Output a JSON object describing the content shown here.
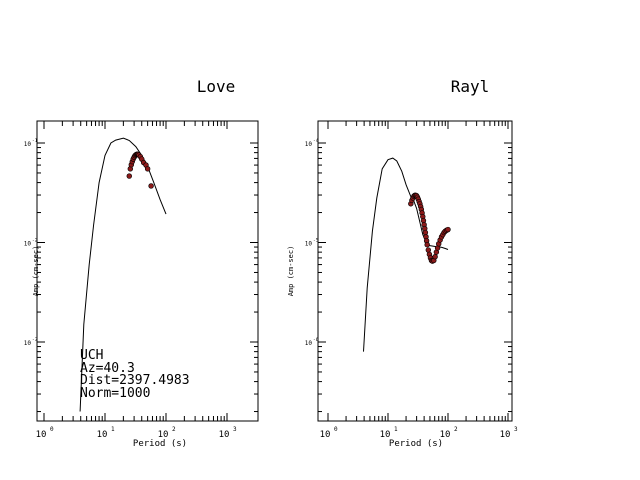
{
  "panels": [
    {
      "title": "Love",
      "xlabel": "Period (s)",
      "ylabel": "Amp (cm-sec)",
      "x_ticks": [
        {
          "value": 1,
          "base": "10",
          "exp": "0"
        },
        {
          "value": 10,
          "base": "10",
          "exp": "1"
        },
        {
          "value": 100,
          "base": "10",
          "exp": "2"
        },
        {
          "value": 1000,
          "base": "10",
          "exp": "3"
        }
      ],
      "y_ticks": [
        {
          "value": 0.1,
          "base": "10",
          "exp": "-1"
        },
        {
          "value": 0.01,
          "base": "10",
          "exp": "-2"
        },
        {
          "value": 0.001,
          "base": "10",
          "exp": "-3"
        }
      ],
      "info": [
        "UCH",
        "Az=40.3",
        "Dist=2397.4983",
        "Norm=1000"
      ]
    },
    {
      "title": "Rayl",
      "xlabel": "Period (s)",
      "ylabel": "Amp (cm-sec)",
      "x_ticks": [
        {
          "value": 1,
          "base": "10",
          "exp": "0"
        },
        {
          "value": 10,
          "base": "10",
          "exp": "1"
        },
        {
          "value": 100,
          "base": "10",
          "exp": "2"
        },
        {
          "value": 1000,
          "base": "10",
          "exp": "3"
        }
      ],
      "y_ticks": [
        {
          "value": 0.0001,
          "base": "10",
          "exp": "-4"
        },
        {
          "value": 1e-05,
          "base": "10",
          "exp": "-5"
        },
        {
          "value": 1e-06,
          "base": "10",
          "exp": "-6"
        }
      ],
      "info": []
    }
  ],
  "chart_data": [
    {
      "type": "line",
      "title": "Love",
      "xlabel": "Period (s)",
      "ylabel": "Amp (cm-sec)",
      "x_scale": "log",
      "y_scale": "log",
      "xlim": [
        1,
        1000
      ],
      "ylim": [
        0.0002,
        0.2
      ],
      "grid": false,
      "series": [
        {
          "kind": "line",
          "color": "#000000",
          "x": [
            3.9,
            4.5,
            5.5,
            6.5,
            8,
            10,
            12.5,
            15,
            20,
            25,
            32,
            40,
            50,
            63,
            80,
            100
          ],
          "y": [
            0.0002,
            0.0015,
            0.006,
            0.015,
            0.04,
            0.075,
            0.1,
            0.107,
            0.112,
            0.106,
            0.092,
            0.075,
            0.058,
            0.04,
            0.027,
            0.0193
          ]
        },
        {
          "kind": "scatter",
          "color": "#8b1a1a",
          "x": [
            25,
            26,
            27,
            28,
            29,
            30,
            31,
            32,
            33,
            34,
            35,
            36,
            38,
            40,
            43,
            47,
            50,
            57
          ],
          "y": [
            0.0465,
            0.055,
            0.0605,
            0.065,
            0.069,
            0.072,
            0.0745,
            0.076,
            0.077,
            0.0772,
            0.0768,
            0.0755,
            0.073,
            0.069,
            0.0635,
            0.06,
            0.055,
            0.037
          ]
        }
      ]
    },
    {
      "type": "line",
      "title": "Rayl",
      "xlabel": "Period (s)",
      "ylabel": "Amp (cm-sec)",
      "x_scale": "log",
      "y_scale": "log",
      "xlim": [
        1,
        1000
      ],
      "ylim": [
        2e-07,
        0.0002
      ],
      "grid": false,
      "series": [
        {
          "kind": "line",
          "color": "#000000",
          "x": [
            3.9,
            4.5,
            5.5,
            6.5,
            8,
            10,
            12,
            14,
            17,
            20,
            24,
            27,
            30,
            34,
            38,
            42,
            46,
            50,
            56,
            63,
            70,
            80,
            90,
            100
          ],
          "y": [
            8e-07,
            3.5e-06,
            1.3e-05,
            2.8e-05,
            5.5e-05,
            6.8e-05,
            7.05e-05,
            6.6e-05,
            5.2e-05,
            3.8e-05,
            2.9e-05,
            2.6e-05,
            2.2e-05,
            1.6e-05,
            1.2e-05,
            1.05e-05,
            9.6e-06,
            9.3e-06,
            9.2e-06,
            9.1e-06,
            9.1e-06,
            8.9e-06,
            8.7e-06,
            8.5e-06
          ]
        },
        {
          "kind": "scatter",
          "color": "#8b1a1a",
          "x": [
            24,
            25,
            26,
            27,
            28,
            29,
            30,
            31,
            32,
            33,
            34,
            35,
            36,
            37,
            38,
            39,
            40,
            41,
            42,
            43,
            44,
            45,
            47,
            49,
            51,
            53,
            55,
            58,
            61,
            64,
            67,
            70,
            74,
            78,
            82,
            86,
            90,
            95,
            100
          ],
          "y": [
            2.45e-05,
            2.65e-05,
            2.8e-05,
            2.92e-05,
            2.98e-05,
            2.98e-05,
            2.95e-05,
            2.85e-05,
            2.72e-05,
            2.58e-05,
            2.45e-05,
            2.3e-05,
            2.15e-05,
            1.98e-05,
            1.82e-05,
            1.66e-05,
            1.51e-05,
            1.38e-05,
            1.26e-05,
            1.14e-05,
            1.04e-05,
            9.5e-06,
            8.4e-06,
            7.6e-06,
            7e-06,
            6.6e-06,
            6.5e-06,
            6.6e-06,
            7.2e-06,
            8e-06,
            8.8e-06,
            9.7e-06,
            1.06e-05,
            1.14e-05,
            1.2e-05,
            1.26e-05,
            1.3e-05,
            1.33e-05,
            1.35e-05
          ]
        }
      ]
    }
  ]
}
